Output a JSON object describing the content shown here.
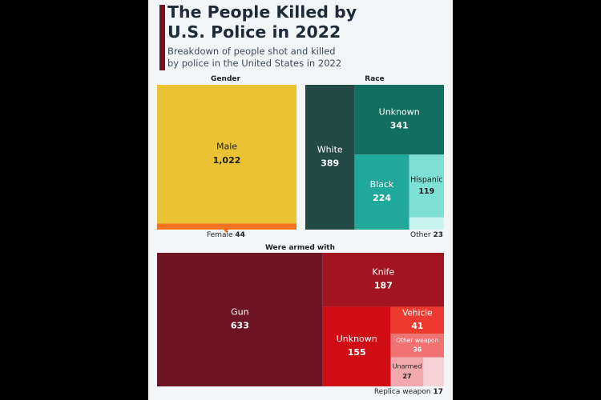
{
  "header": {
    "title_line1": "The People Killed by",
    "title_line2": "U.S. Police in 2022",
    "subtitle_line1": "Breakdown of people shot and killed",
    "subtitle_line2": "by police in the United States in 2022"
  },
  "chart_data": [
    {
      "type": "treemap",
      "title": "Gender",
      "items": [
        {
          "label": "Male",
          "value": 1022,
          "display": "1,022",
          "color": "#ebc233",
          "text_color": "#1d1d1d"
        },
        {
          "label": "Female",
          "value": 44,
          "display": "44",
          "color": "#f27321",
          "label_outside": true
        }
      ]
    },
    {
      "type": "treemap",
      "title": "Race",
      "items": [
        {
          "label": "White",
          "value": 389,
          "display": "389",
          "color": "#244a47",
          "text_color": "#ffffff"
        },
        {
          "label": "Unknown",
          "value": 341,
          "display": "341",
          "color": "#116e61",
          "text_color": "#ffffff"
        },
        {
          "label": "Black",
          "value": 224,
          "display": "224",
          "color": "#20a89a",
          "text_color": "#ffffff"
        },
        {
          "label": "Hispanic",
          "value": 119,
          "display": "119",
          "color": "#7ee0d4",
          "text_color": "#1d1d1d"
        },
        {
          "label": "Other",
          "value": 23,
          "display": "23",
          "color": "#c8f3ee",
          "label_outside": true
        }
      ]
    },
    {
      "type": "treemap",
      "title": "Were armed with",
      "items": [
        {
          "label": "Gun",
          "value": 633,
          "display": "633",
          "color": "#6e1523",
          "text_color": "#ffffff"
        },
        {
          "label": "Knife",
          "value": 187,
          "display": "187",
          "color": "#a21420",
          "text_color": "#ffffff"
        },
        {
          "label": "Unknown",
          "value": 155,
          "display": "155",
          "color": "#d00d14",
          "text_color": "#ffffff"
        },
        {
          "label": "Vehicle",
          "value": 41,
          "display": "41",
          "color": "#ec3a2f",
          "text_color": "#ffffff"
        },
        {
          "label": "Other weapon",
          "value": 36,
          "display": "36",
          "color": "#f07272",
          "text_color": "#ffffff"
        },
        {
          "label": "Unarmed",
          "value": 27,
          "display": "27",
          "color": "#f2a9ad",
          "text_color": "#1d1d1d"
        },
        {
          "label": "Replica weapon",
          "value": 17,
          "display": "17",
          "color": "#f6d3d6",
          "label_outside": true
        }
      ]
    }
  ]
}
